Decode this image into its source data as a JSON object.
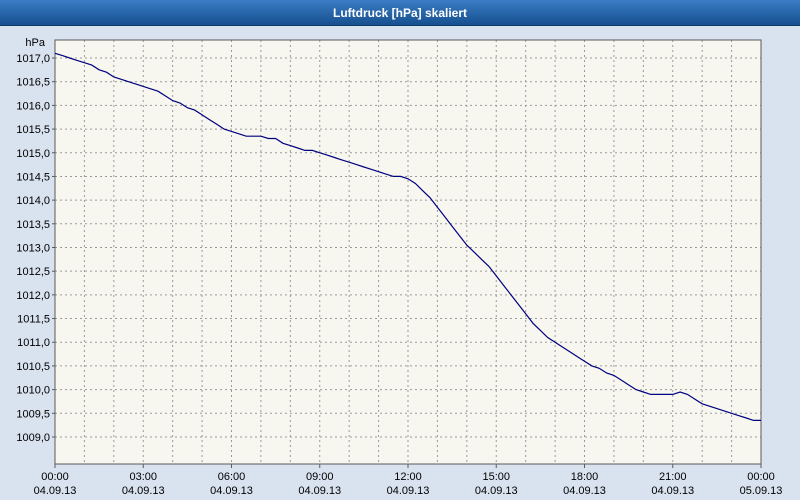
{
  "window": {
    "title": "Luftdruck [hPa] skaliert"
  },
  "colors": {
    "titlebar_top": "#3b7cc4",
    "titlebar_bottom": "#16508f",
    "title_text": "#ffffff",
    "outer_background": "#d9e2ef",
    "plot_background": "#f7f7f0",
    "grid": "#9a9a9a",
    "axis_border": "#5a5a5a",
    "line": "#000080",
    "tick_text": "#000000"
  },
  "chart_data": {
    "type": "line",
    "title": "Luftdruck [hPa] skaliert",
    "ylabel": "hPa",
    "series_name": "Luftdruck",
    "grid": true,
    "legend": "none",
    "xlim": [
      0,
      24
    ],
    "ylim": [
      1008.43,
      1017.38
    ],
    "y_ticks": [
      {
        "value": 1017.0,
        "label": "1017,0"
      },
      {
        "value": 1016.5,
        "label": "1016,5"
      },
      {
        "value": 1016.0,
        "label": "1016,0"
      },
      {
        "value": 1015.5,
        "label": "1015,5"
      },
      {
        "value": 1015.0,
        "label": "1015,0"
      },
      {
        "value": 1014.5,
        "label": "1014,5"
      },
      {
        "value": 1014.0,
        "label": "1014,0"
      },
      {
        "value": 1013.5,
        "label": "1013,5"
      },
      {
        "value": 1013.0,
        "label": "1013,0"
      },
      {
        "value": 1012.5,
        "label": "1012,5"
      },
      {
        "value": 1012.0,
        "label": "1012,0"
      },
      {
        "value": 1011.5,
        "label": "1011,5"
      },
      {
        "value": 1011.0,
        "label": "1011,0"
      },
      {
        "value": 1010.5,
        "label": "1010,5"
      },
      {
        "value": 1010.0,
        "label": "1010,0"
      },
      {
        "value": 1009.5,
        "label": "1009,5"
      },
      {
        "value": 1009.0,
        "label": "1009,0"
      }
    ],
    "x_ticks": [
      {
        "hour": 0,
        "time": "00:00",
        "date": "04.09.13"
      },
      {
        "hour": 3,
        "time": "03:00",
        "date": "04.09.13"
      },
      {
        "hour": 6,
        "time": "06:00",
        "date": "04.09.13"
      },
      {
        "hour": 9,
        "time": "09:00",
        "date": "04.09.13"
      },
      {
        "hour": 12,
        "time": "12:00",
        "date": "04.09.13"
      },
      {
        "hour": 15,
        "time": "15:00",
        "date": "04.09.13"
      },
      {
        "hour": 18,
        "time": "18:00",
        "date": "04.09.13"
      },
      {
        "hour": 21,
        "time": "21:00",
        "date": "04.09.13"
      },
      {
        "hour": 24,
        "time": "00:00",
        "date": "05.09.13"
      }
    ],
    "x_start_hour": 0,
    "x_step_hours": 0.25,
    "values": [
      1017.1,
      1017.05,
      1017.0,
      1016.95,
      1016.9,
      1016.85,
      1016.75,
      1016.7,
      1016.6,
      1016.55,
      1016.5,
      1016.45,
      1016.4,
      1016.35,
      1016.3,
      1016.2,
      1016.1,
      1016.05,
      1015.95,
      1015.9,
      1015.8,
      1015.7,
      1015.6,
      1015.5,
      1015.45,
      1015.4,
      1015.35,
      1015.35,
      1015.35,
      1015.3,
      1015.3,
      1015.2,
      1015.15,
      1015.1,
      1015.05,
      1015.05,
      1015.0,
      1014.95,
      1014.9,
      1014.85,
      1014.8,
      1014.75,
      1014.7,
      1014.65,
      1014.6,
      1014.55,
      1014.5,
      1014.5,
      1014.45,
      1014.35,
      1014.2,
      1014.05,
      1013.85,
      1013.65,
      1013.45,
      1013.25,
      1013.05,
      1012.9,
      1012.75,
      1012.6,
      1012.4,
      1012.2,
      1012.0,
      1011.8,
      1011.6,
      1011.4,
      1011.25,
      1011.1,
      1011.0,
      1010.9,
      1010.8,
      1010.7,
      1010.6,
      1010.5,
      1010.45,
      1010.35,
      1010.3,
      1010.2,
      1010.1,
      1010.0,
      1009.95,
      1009.9,
      1009.9,
      1009.9,
      1009.9,
      1009.95,
      1009.9,
      1009.8,
      1009.7,
      1009.65,
      1009.6,
      1009.55,
      1009.5,
      1009.45,
      1009.4,
      1009.35,
      1009.35
    ]
  }
}
